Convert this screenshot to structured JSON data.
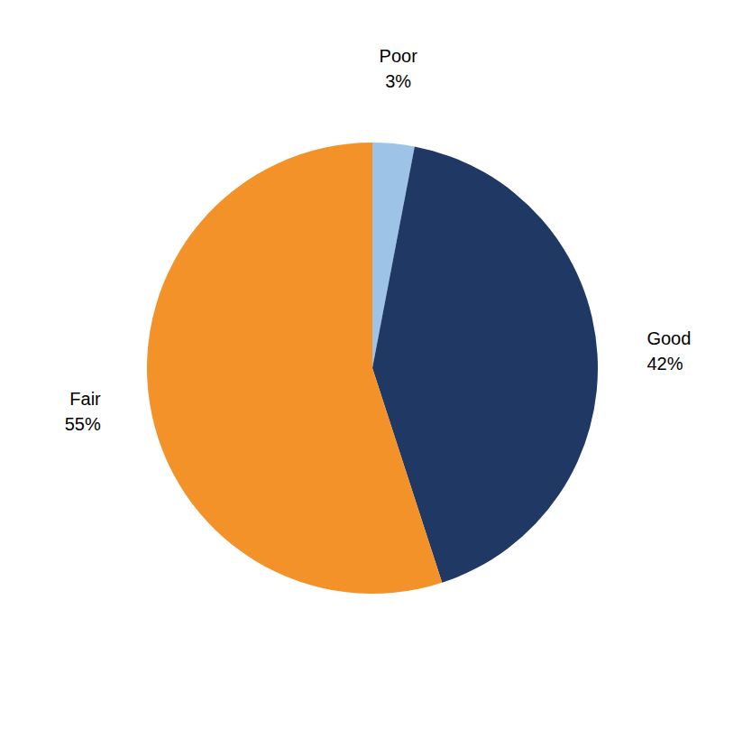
{
  "chart_data": {
    "type": "pie",
    "categories": [
      "Poor",
      "Good",
      "Fair"
    ],
    "values": [
      3,
      42,
      55
    ],
    "value_labels": [
      "3%",
      "42%",
      "55%"
    ],
    "colors": [
      "#9DC3E6",
      "#1F3864",
      "#F4922A"
    ],
    "data_labels": true
  }
}
